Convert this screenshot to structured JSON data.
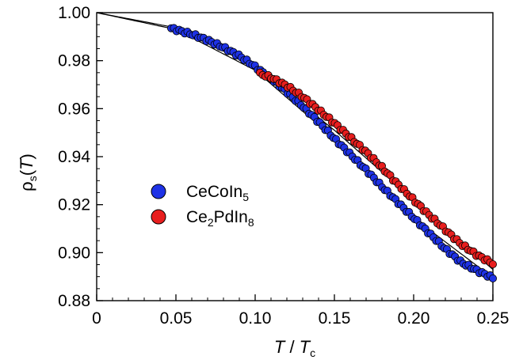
{
  "chart_data": {
    "type": "scatter",
    "xlabel": {
      "main": "T",
      "sep": " / ",
      "sub_main": "T",
      "sub": "c"
    },
    "ylabel": {
      "main": "ρ",
      "sub": "s",
      "paren_open": "(",
      "var": "T",
      "paren_close": ")"
    },
    "xlim": [
      0,
      0.25
    ],
    "ylim": [
      0.88,
      1.0
    ],
    "x_ticks": [
      0,
      0.05,
      0.1,
      0.15,
      0.2,
      0.25
    ],
    "x_tick_labels": [
      "0",
      "0.05",
      "0.10",
      "0.15",
      "0.20",
      "0.25"
    ],
    "y_ticks": [
      0.88,
      0.9,
      0.92,
      0.94,
      0.96,
      0.98,
      1.0
    ],
    "y_tick_labels": [
      "0.88",
      "0.90",
      "0.92",
      "0.94",
      "0.96",
      "0.98",
      "1.00"
    ],
    "grid": false,
    "legend_position": "center-left",
    "series": [
      {
        "name": "CeCoIn5",
        "label_main": "CeCoIn",
        "label_sub": "5",
        "color": "#1e32e6",
        "x_range": [
          0.047,
          0.25
        ],
        "values": [
          [
            0.047,
            0.9935
          ],
          [
            0.06,
            0.991
          ],
          [
            0.07,
            0.9885
          ],
          [
            0.08,
            0.9855
          ],
          [
            0.09,
            0.982
          ],
          [
            0.1,
            0.9775
          ],
          [
            0.11,
            0.9725
          ],
          [
            0.12,
            0.967
          ],
          [
            0.13,
            0.961
          ],
          [
            0.14,
            0.9545
          ],
          [
            0.15,
            0.9475
          ],
          [
            0.16,
            0.941
          ],
          [
            0.17,
            0.9345
          ],
          [
            0.18,
            0.9275
          ],
          [
            0.19,
            0.921
          ],
          [
            0.2,
            0.9145
          ],
          [
            0.21,
            0.908
          ],
          [
            0.22,
            0.9015
          ],
          [
            0.23,
            0.896
          ],
          [
            0.24,
            0.8925
          ],
          [
            0.25,
            0.8895
          ]
        ]
      },
      {
        "name": "Ce2PdIn8",
        "label_main": "Ce",
        "label_sub1": "2",
        "label_mid": "PdIn",
        "label_sub2": "8",
        "color": "#e81e1e",
        "x_range": [
          0.103,
          0.25
        ],
        "values": [
          [
            0.103,
            0.9745
          ],
          [
            0.11,
            0.973
          ],
          [
            0.12,
            0.9695
          ],
          [
            0.13,
            0.965
          ],
          [
            0.14,
            0.9595
          ],
          [
            0.15,
            0.954
          ],
          [
            0.16,
            0.948
          ],
          [
            0.17,
            0.942
          ],
          [
            0.18,
            0.9355
          ],
          [
            0.19,
            0.9285
          ],
          [
            0.2,
            0.922
          ],
          [
            0.21,
            0.9155
          ],
          [
            0.22,
            0.9095
          ],
          [
            0.23,
            0.9035
          ],
          [
            0.24,
            0.899
          ],
          [
            0.25,
            0.8955
          ]
        ]
      }
    ],
    "fit_lines": [
      {
        "name": "fit-1",
        "values": [
          [
            0,
            1.0
          ],
          [
            0.05,
            0.9937
          ],
          [
            0.1,
            0.9775
          ],
          [
            0.15,
            0.951
          ],
          [
            0.2,
            0.922
          ],
          [
            0.25,
            0.893
          ]
        ]
      },
      {
        "name": "fit-2",
        "values": [
          [
            0,
            1.0
          ],
          [
            0.05,
            0.993
          ],
          [
            0.1,
            0.976
          ],
          [
            0.15,
            0.9475
          ],
          [
            0.2,
            0.9145
          ],
          [
            0.25,
            0.8895
          ]
        ]
      }
    ]
  }
}
